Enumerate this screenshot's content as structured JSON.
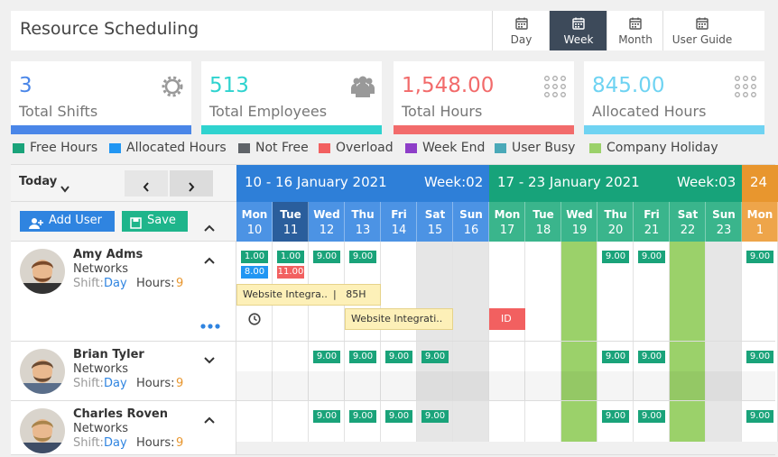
{
  "header": {
    "title": "Resource Scheduling",
    "views": [
      {
        "label": "Day"
      },
      {
        "label": "Week",
        "active": true
      },
      {
        "label": "Month"
      },
      {
        "label": "User Guide"
      }
    ]
  },
  "stats": [
    {
      "value": "3",
      "label": "Total Shifts",
      "color": "#4a86e8"
    },
    {
      "value": "513",
      "label": "Total Employees",
      "color": "#2fd3cf"
    },
    {
      "value": "1,548.00",
      "label": "Total Hours",
      "color": "#f26b6b"
    },
    {
      "value": "845.00",
      "label": "Allocated Hours",
      "color": "#6fd3f2"
    }
  ],
  "legend": [
    {
      "label": "Free Hours",
      "color": "#1aa37a"
    },
    {
      "label": "Allocated Hours",
      "color": "#2196f3"
    },
    {
      "label": "Not Free",
      "color": "#5f6368"
    },
    {
      "label": "Overload",
      "color": "#f26060"
    },
    {
      "label": "Week End",
      "color": "#8e3ec8"
    },
    {
      "label": "User Busy",
      "color": "#4aa9b8"
    },
    {
      "label": "Company Holiday",
      "color": "#9bd16a"
    }
  ],
  "toolbar": {
    "today": "Today",
    "add_user": "Add User",
    "save": "Save"
  },
  "weeks": [
    {
      "range": "10 - 16 January 2021",
      "week": "Week:02",
      "color": "#2e7fd8",
      "day_color": "#4c93e4",
      "days": [
        {
          "dow": "Mon",
          "date": "10"
        },
        {
          "dow": "Tue",
          "date": "11",
          "selected": true
        },
        {
          "dow": "Wed",
          "date": "12"
        },
        {
          "dow": "Thu",
          "date": "13"
        },
        {
          "dow": "Fri",
          "date": "14"
        },
        {
          "dow": "Sat",
          "date": "15",
          "weekend": true
        },
        {
          "dow": "Sun",
          "date": "16",
          "weekend": true
        }
      ]
    },
    {
      "range": "17 - 23 January 2021",
      "week": "Week:03",
      "color": "#17a37a",
      "day_color": "#3ab58c",
      "days": [
        {
          "dow": "Mon",
          "date": "17"
        },
        {
          "dow": "Tue",
          "date": "18"
        },
        {
          "dow": "Wed",
          "date": "19",
          "holiday": true
        },
        {
          "dow": "Thu",
          "date": "20"
        },
        {
          "dow": "Fri",
          "date": "21"
        },
        {
          "dow": "Sat",
          "date": "22",
          "holiday": true
        },
        {
          "dow": "Sun",
          "date": "23",
          "weekend": true
        }
      ]
    },
    {
      "range": "24",
      "color": "#e8962e",
      "day_color": "#eea54a",
      "days": [
        {
          "dow": "Mon",
          "date": "1"
        }
      ]
    }
  ],
  "users": [
    {
      "name": "Amy Adms",
      "dept": "Networks",
      "shift_label": "Shift:",
      "shift": "Day",
      "hours_label": "Hours:",
      "hours": "9",
      "expanded": true,
      "cells": [
        {
          "col": 0,
          "chips": [
            {
              "text": "1.00",
              "color": "#1aa37a"
            },
            {
              "text": "8.00",
              "color": "#2196f3"
            }
          ]
        },
        {
          "col": 1,
          "chips": [
            {
              "text": "1.00",
              "color": "#1aa37a"
            },
            {
              "text": "11.00",
              "color": "#f26060"
            }
          ]
        },
        {
          "col": 2,
          "chips": [
            {
              "text": "9.00",
              "color": "#1aa37a"
            }
          ]
        },
        {
          "col": 3,
          "chips": [
            {
              "text": "9.00",
              "color": "#1aa37a"
            }
          ]
        },
        {
          "col": 10,
          "chips": [
            {
              "text": "9.00",
              "color": "#1aa37a"
            }
          ]
        },
        {
          "col": 11,
          "chips": [
            {
              "text": "9.00",
              "color": "#1aa37a"
            }
          ]
        },
        {
          "col": 14,
          "chips": [
            {
              "text": "9.00",
              "color": "#1aa37a"
            }
          ]
        }
      ],
      "tasks": [
        {
          "name": "Website Integra..",
          "hours": "|   85H",
          "start": 0,
          "span": 4,
          "lane": 0,
          "color": "#fdf0b8"
        },
        {
          "name": "Website Integrati..",
          "start": 3,
          "span": 3,
          "lane": 1,
          "color": "#fdf0b8"
        },
        {
          "name": "ID",
          "start": 7,
          "span": 1,
          "lane": 1,
          "color": "#f26060"
        }
      ]
    },
    {
      "name": "Brian Tyler",
      "dept": "Networks",
      "shift_label": "Shift:",
      "shift": "Day",
      "hours_label": "Hours:",
      "hours": "9",
      "expanded": false,
      "cells": [
        {
          "col": 2,
          "chips": [
            {
              "text": "9.00",
              "color": "#1aa37a"
            }
          ]
        },
        {
          "col": 3,
          "chips": [
            {
              "text": "9.00",
              "color": "#1aa37a"
            }
          ]
        },
        {
          "col": 4,
          "chips": [
            {
              "text": "9.00",
              "color": "#1aa37a"
            }
          ]
        },
        {
          "col": 5,
          "chips": [
            {
              "text": "9.00",
              "color": "#1aa37a"
            }
          ]
        },
        {
          "col": 10,
          "chips": [
            {
              "text": "9.00",
              "color": "#1aa37a"
            }
          ]
        },
        {
          "col": 11,
          "chips": [
            {
              "text": "9.00",
              "color": "#1aa37a"
            }
          ]
        },
        {
          "col": 14,
          "chips": [
            {
              "text": "9.00",
              "color": "#1aa37a"
            }
          ]
        }
      ]
    },
    {
      "name": "Charles Roven",
      "dept": "Networks",
      "shift_label": "Shift:",
      "shift": "Day",
      "hours_label": "Hours:",
      "hours": "9",
      "expanded": true,
      "cells": [
        {
          "col": 2,
          "chips": [
            {
              "text": "9.00",
              "color": "#1aa37a"
            }
          ]
        },
        {
          "col": 3,
          "chips": [
            {
              "text": "9.00",
              "color": "#1aa37a"
            }
          ]
        },
        {
          "col": 4,
          "chips": [
            {
              "text": "9.00",
              "color": "#1aa37a"
            }
          ]
        },
        {
          "col": 5,
          "chips": [
            {
              "text": "9.00",
              "color": "#1aa37a"
            }
          ]
        },
        {
          "col": 10,
          "chips": [
            {
              "text": "9.00",
              "color": "#1aa37a"
            }
          ]
        },
        {
          "col": 11,
          "chips": [
            {
              "text": "9.00",
              "color": "#1aa37a"
            }
          ]
        },
        {
          "col": 14,
          "chips": [
            {
              "text": "9.00",
              "color": "#1aa37a"
            }
          ]
        }
      ]
    }
  ]
}
